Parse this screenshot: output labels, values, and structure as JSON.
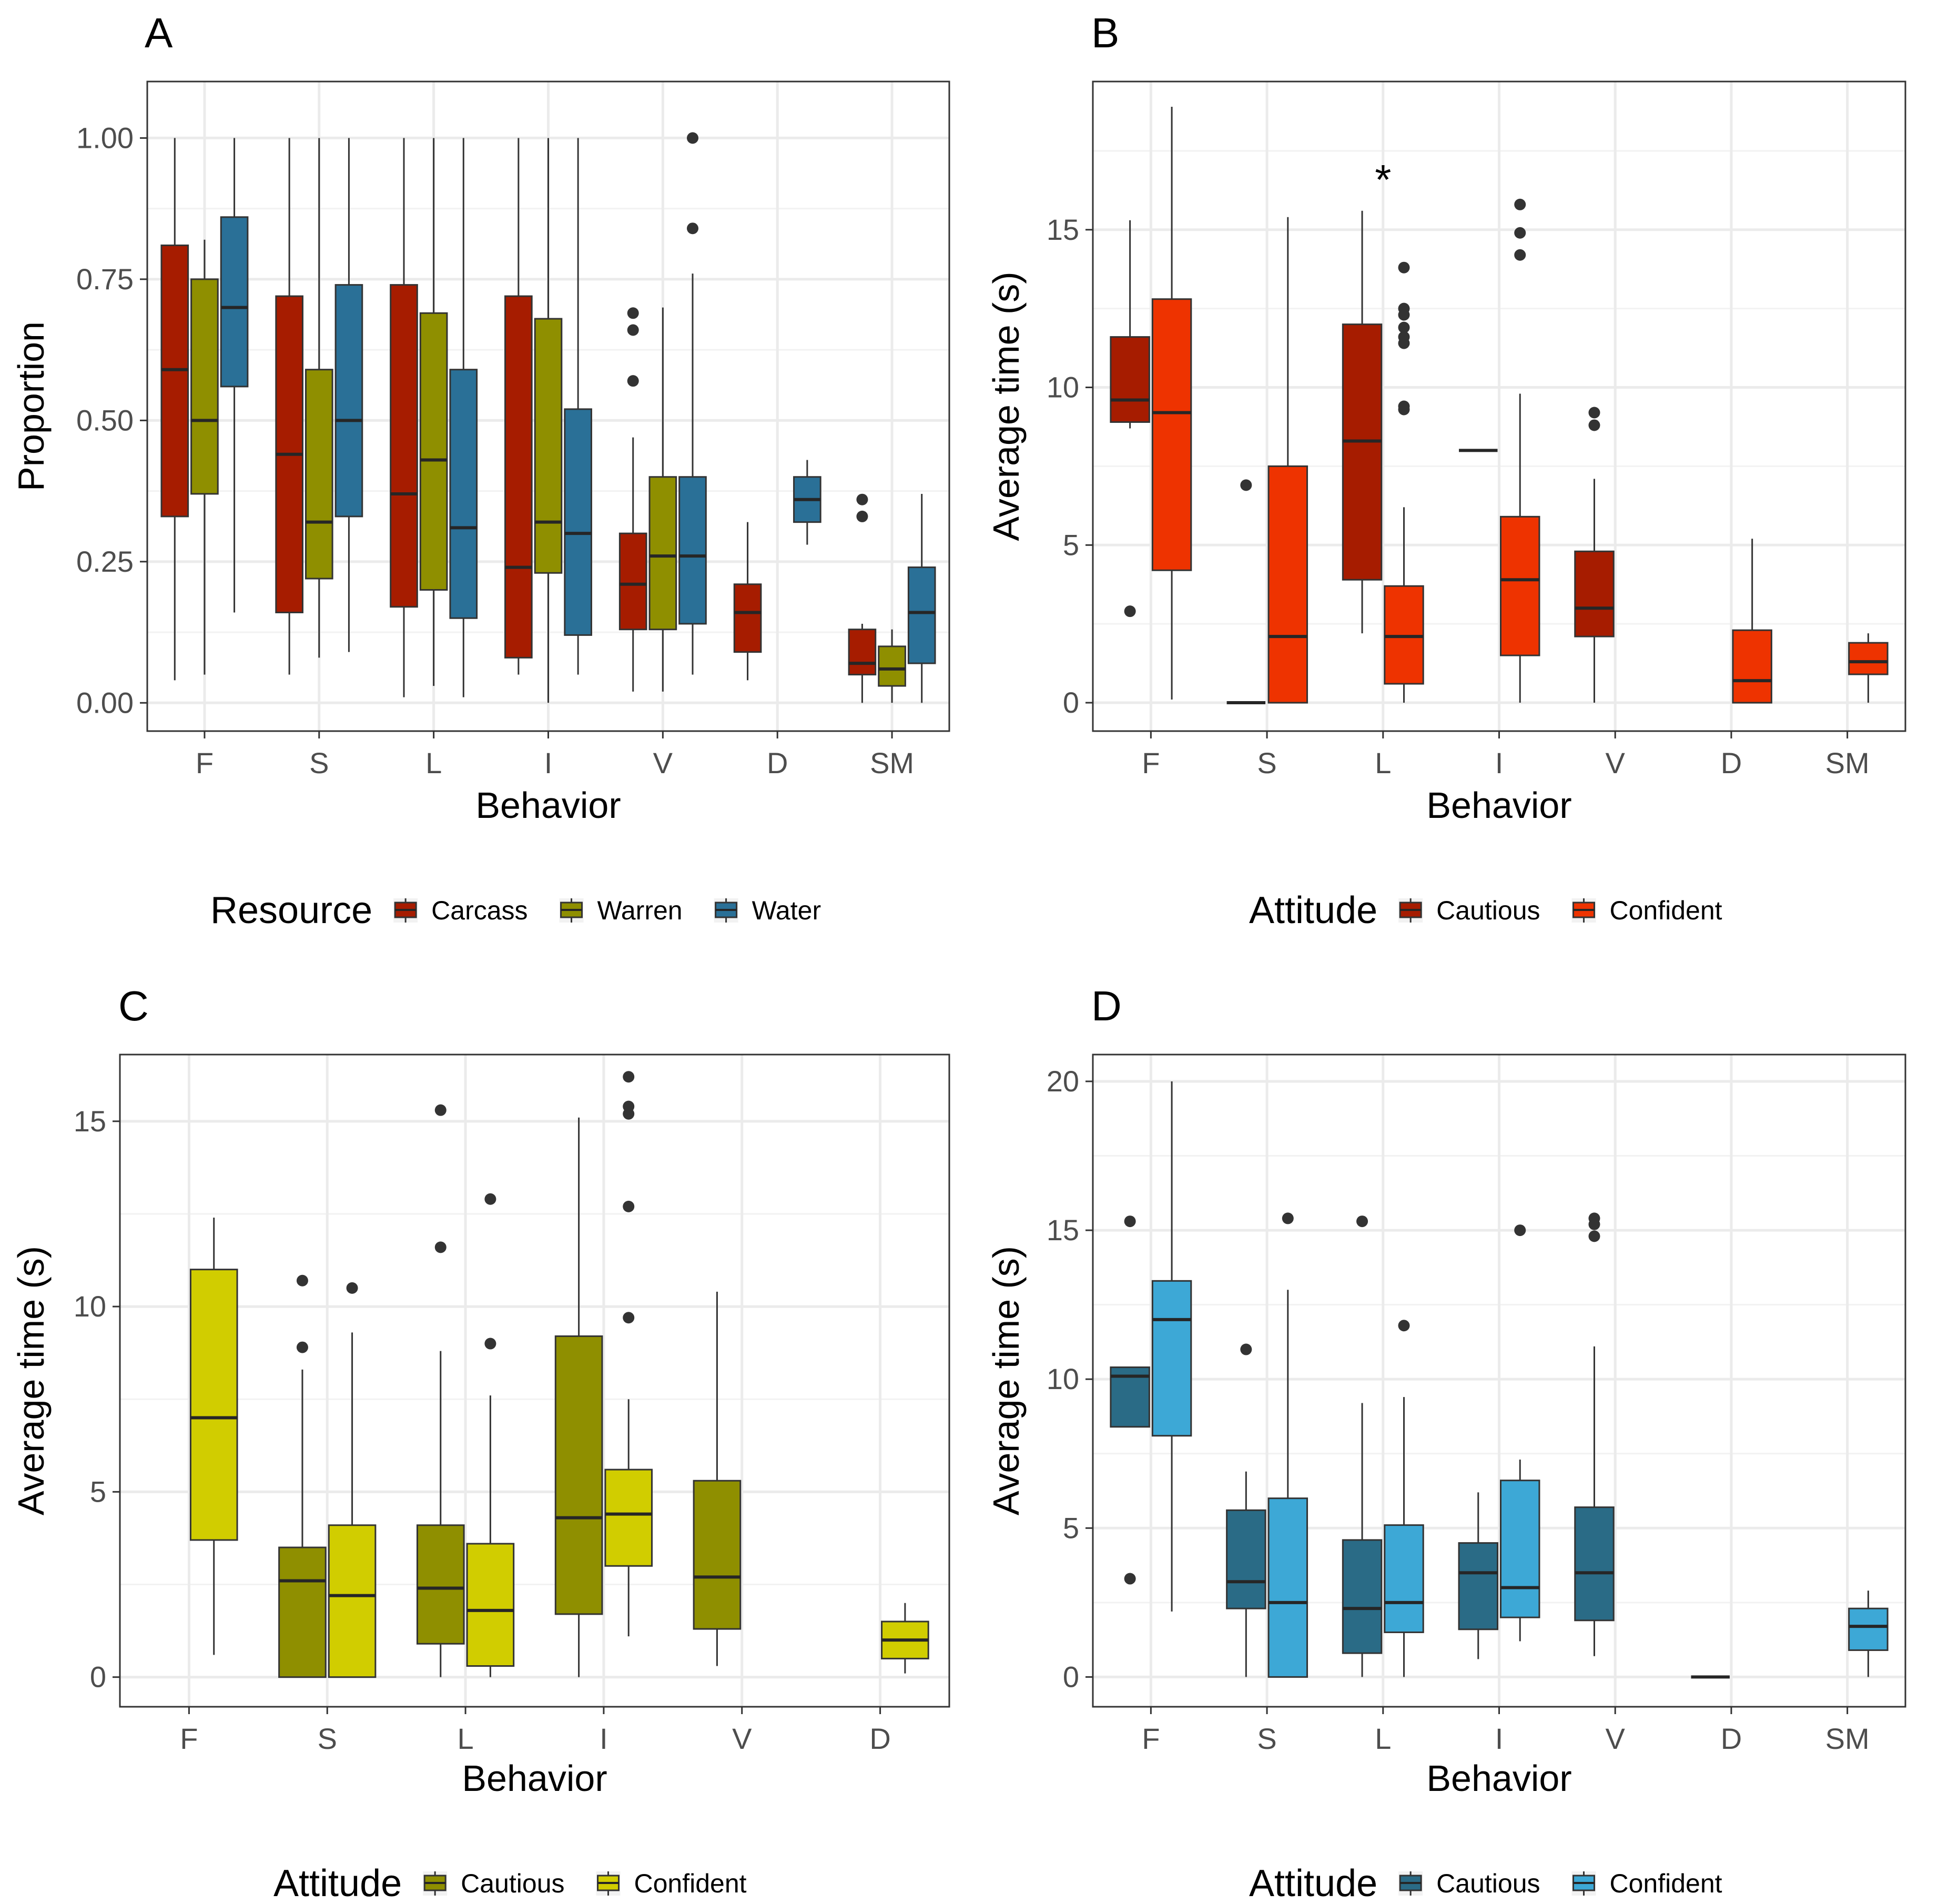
{
  "chart_data": [
    {
      "panel": "A",
      "type": "boxplot",
      "xlabel": "Behavior",
      "ylabel": "Proportion",
      "ylim": [
        -0.05,
        1.1
      ],
      "yticks": [
        0,
        0.25,
        0.5,
        0.75,
        1.0
      ],
      "ytick_labels": [
        "0.00",
        "0.25",
        "0.50",
        "0.75",
        "1.00"
      ],
      "categories": [
        "F",
        "S",
        "L",
        "I",
        "V",
        "D",
        "SM"
      ],
      "legend_title": "Resource",
      "series": [
        {
          "name": "Carcass",
          "color": "#A61C00",
          "boxes": [
            {
              "cat": "F",
              "min": 0.04,
              "q1": 0.33,
              "median": 0.59,
              "q3": 0.81,
              "max": 1.0,
              "outliers": []
            },
            {
              "cat": "S",
              "min": 0.05,
              "q1": 0.16,
              "median": 0.44,
              "q3": 0.72,
              "max": 1.0,
              "outliers": []
            },
            {
              "cat": "L",
              "min": 0.01,
              "q1": 0.17,
              "median": 0.37,
              "q3": 0.74,
              "max": 1.0,
              "outliers": []
            },
            {
              "cat": "I",
              "min": 0.05,
              "q1": 0.08,
              "median": 0.24,
              "q3": 0.72,
              "max": 1.0,
              "outliers": []
            },
            {
              "cat": "V",
              "min": 0.02,
              "q1": 0.13,
              "median": 0.21,
              "q3": 0.3,
              "max": 0.47,
              "outliers": [
                0.57,
                0.66,
                0.69
              ]
            },
            {
              "cat": "D",
              "min": 0.04,
              "q1": 0.09,
              "median": 0.16,
              "q3": 0.21,
              "max": 0.32,
              "outliers": []
            },
            {
              "cat": "SM",
              "min": 0.0,
              "q1": 0.05,
              "median": 0.07,
              "q3": 0.13,
              "max": 0.14,
              "outliers": [
                0.33,
                0.36
              ]
            }
          ]
        },
        {
          "name": "Warren",
          "color": "#8F8F00",
          "boxes": [
            {
              "cat": "F",
              "min": 0.05,
              "q1": 0.37,
              "median": 0.5,
              "q3": 0.75,
              "max": 0.82,
              "outliers": []
            },
            {
              "cat": "S",
              "min": 0.08,
              "q1": 0.22,
              "median": 0.32,
              "q3": 0.59,
              "max": 1.0,
              "outliers": []
            },
            {
              "cat": "L",
              "min": 0.03,
              "q1": 0.2,
              "median": 0.43,
              "q3": 0.69,
              "max": 1.0,
              "outliers": []
            },
            {
              "cat": "I",
              "min": 0.0,
              "q1": 0.23,
              "median": 0.32,
              "q3": 0.68,
              "max": 1.0,
              "outliers": []
            },
            {
              "cat": "V",
              "min": 0.02,
              "q1": 0.13,
              "median": 0.26,
              "q3": 0.4,
              "max": 0.7,
              "outliers": []
            },
            {
              "cat": "SM",
              "min": 0.0,
              "q1": 0.03,
              "median": 0.06,
              "q3": 0.1,
              "max": 0.13,
              "outliers": []
            }
          ]
        },
        {
          "name": "Water",
          "color": "#2A7097",
          "boxes": [
            {
              "cat": "F",
              "min": 0.16,
              "q1": 0.56,
              "median": 0.7,
              "q3": 0.86,
              "max": 1.0,
              "outliers": []
            },
            {
              "cat": "S",
              "min": 0.09,
              "q1": 0.33,
              "median": 0.5,
              "q3": 0.74,
              "max": 1.0,
              "outliers": []
            },
            {
              "cat": "L",
              "min": 0.01,
              "q1": 0.15,
              "median": 0.31,
              "q3": 0.59,
              "max": 1.0,
              "outliers": []
            },
            {
              "cat": "I",
              "min": 0.05,
              "q1": 0.12,
              "median": 0.3,
              "q3": 0.52,
              "max": 1.0,
              "outliers": []
            },
            {
              "cat": "V",
              "min": 0.05,
              "q1": 0.14,
              "median": 0.26,
              "q3": 0.4,
              "max": 0.76,
              "outliers": [
                0.84,
                1.0
              ]
            },
            {
              "cat": "D",
              "min": 0.28,
              "q1": 0.32,
              "median": 0.36,
              "q3": 0.4,
              "max": 0.43,
              "outliers": []
            },
            {
              "cat": "SM",
              "min": 0.0,
              "q1": 0.07,
              "median": 0.16,
              "q3": 0.24,
              "max": 0.37,
              "outliers": []
            }
          ]
        }
      ],
      "annotations": []
    },
    {
      "panel": "B",
      "type": "boxplot",
      "xlabel": "Behavior",
      "ylabel": "Average time (s)",
      "ylim": [
        -0.9,
        19.7
      ],
      "yticks": [
        0,
        5,
        10,
        15
      ],
      "ytick_labels": [
        "0",
        "5",
        "10",
        "15"
      ],
      "categories": [
        "F",
        "S",
        "L",
        "I",
        "V",
        "D",
        "SM"
      ],
      "legend_title": "Attitude",
      "series": [
        {
          "name": "Cautious",
          "color": "#A61C00",
          "boxes": [
            {
              "cat": "F",
              "min": 8.7,
              "q1": 8.9,
              "median": 9.6,
              "q3": 11.6,
              "max": 15.3,
              "outliers": [
                2.9
              ]
            },
            {
              "cat": "S",
              "min": 0.0,
              "q1": 0.0,
              "median": 0.0,
              "q3": 0.0,
              "max": 0.0,
              "outliers": [
                6.9
              ]
            },
            {
              "cat": "L",
              "min": 2.2,
              "q1": 3.9,
              "median": 8.3,
              "q3": 12.0,
              "max": 15.6,
              "outliers": []
            },
            {
              "cat": "I",
              "min": 8.0,
              "q1": 8.0,
              "median": 8.0,
              "q3": 8.0,
              "max": 8.0,
              "outliers": []
            },
            {
              "cat": "V",
              "min": 0.0,
              "q1": 2.1,
              "median": 3.0,
              "q3": 4.8,
              "max": 7.1,
              "outliers": [
                8.8,
                9.2
              ]
            }
          ]
        },
        {
          "name": "Confident",
          "color": "#EE3300",
          "boxes": [
            {
              "cat": "F",
              "min": 0.1,
              "q1": 4.2,
              "median": 9.2,
              "q3": 12.8,
              "max": 18.9,
              "outliers": []
            },
            {
              "cat": "S",
              "min": 0.0,
              "q1": 0.0,
              "median": 2.1,
              "q3": 7.5,
              "max": 15.4,
              "outliers": []
            },
            {
              "cat": "L",
              "min": 0.0,
              "q1": 0.6,
              "median": 2.1,
              "q3": 3.7,
              "max": 6.2,
              "outliers": [
                9.3,
                9.4,
                11.4,
                11.6,
                11.9,
                12.3,
                12.5,
                13.8
              ]
            },
            {
              "cat": "I",
              "min": 0.0,
              "q1": 1.5,
              "median": 3.9,
              "q3": 5.9,
              "max": 9.8,
              "outliers": [
                14.2,
                14.9,
                15.8
              ]
            },
            {
              "cat": "D",
              "min": 0.0,
              "q1": 0.0,
              "median": 0.7,
              "q3": 2.3,
              "max": 5.2,
              "outliers": []
            },
            {
              "cat": "SM",
              "min": 0.0,
              "q1": 0.9,
              "median": 1.3,
              "q3": 1.9,
              "max": 2.2,
              "outliers": []
            }
          ]
        }
      ],
      "annotations": [
        {
          "cat": "L",
          "y": 16.6,
          "text": "*"
        }
      ]
    },
    {
      "panel": "C",
      "type": "boxplot",
      "xlabel": "Behavior",
      "ylabel": "Average time (s)",
      "ylim": [
        -0.8,
        16.8
      ],
      "yticks": [
        0,
        5,
        10,
        15
      ],
      "ytick_labels": [
        "0",
        "5",
        "10",
        "15"
      ],
      "categories": [
        "F",
        "S",
        "L",
        "I",
        "V",
        "D"
      ],
      "legend_title": "Attitude",
      "series": [
        {
          "name": "Cautious",
          "color": "#8F8F00",
          "boxes": [
            {
              "cat": "S",
              "min": 0.0,
              "q1": 0.0,
              "median": 2.6,
              "q3": 3.5,
              "max": 8.3,
              "outliers": [
                8.9,
                10.7
              ]
            },
            {
              "cat": "L",
              "min": 0.0,
              "q1": 0.9,
              "median": 2.4,
              "q3": 4.1,
              "max": 8.8,
              "outliers": [
                11.6,
                15.3
              ]
            },
            {
              "cat": "I",
              "min": 0.0,
              "q1": 1.7,
              "median": 4.3,
              "q3": 9.2,
              "max": 15.1,
              "outliers": []
            },
            {
              "cat": "V",
              "min": 0.3,
              "q1": 1.3,
              "median": 2.7,
              "q3": 5.3,
              "max": 10.4,
              "outliers": []
            }
          ]
        },
        {
          "name": "Confident",
          "color": "#D1CD00",
          "boxes": [
            {
              "cat": "F",
              "min": 0.6,
              "q1": 3.7,
              "median": 7.0,
              "q3": 11.0,
              "max": 12.4,
              "outliers": []
            },
            {
              "cat": "S",
              "min": 0.0,
              "q1": 0.0,
              "median": 2.2,
              "q3": 4.1,
              "max": 9.3,
              "outliers": [
                10.5
              ]
            },
            {
              "cat": "L",
              "min": 0.0,
              "q1": 0.3,
              "median": 1.8,
              "q3": 3.6,
              "max": 7.6,
              "outliers": [
                9.0,
                12.9
              ]
            },
            {
              "cat": "I",
              "min": 1.1,
              "q1": 3.0,
              "median": 4.4,
              "q3": 5.6,
              "max": 7.5,
              "outliers": [
                9.7,
                12.7,
                15.2,
                15.4,
                16.2
              ]
            },
            {
              "cat": "D",
              "min": 0.1,
              "q1": 0.5,
              "median": 1.0,
              "q3": 1.5,
              "max": 2.0,
              "outliers": []
            }
          ]
        }
      ],
      "annotations": []
    },
    {
      "panel": "D",
      "type": "boxplot",
      "xlabel": "Behavior",
      "ylabel": "Average time (s)",
      "ylim": [
        -1.0,
        20.9
      ],
      "yticks": [
        0,
        5,
        10,
        15,
        20
      ],
      "ytick_labels": [
        "0",
        "5",
        "10",
        "15",
        "20"
      ],
      "categories": [
        "F",
        "S",
        "L",
        "I",
        "V",
        "D",
        "SM"
      ],
      "legend_title": "Attitude",
      "series": [
        {
          "name": "Cautious",
          "color": "#2A6B86",
          "boxes": [
            {
              "cat": "F",
              "min": 8.4,
              "q1": 8.4,
              "median": 10.1,
              "q3": 10.4,
              "max": 10.4,
              "outliers": [
                3.3,
                15.3
              ]
            },
            {
              "cat": "S",
              "min": 0.0,
              "q1": 2.3,
              "median": 3.2,
              "q3": 5.6,
              "max": 6.9,
              "outliers": [
                11.0
              ]
            },
            {
              "cat": "L",
              "min": 0.0,
              "q1": 0.8,
              "median": 2.3,
              "q3": 4.6,
              "max": 9.2,
              "outliers": [
                15.3
              ]
            },
            {
              "cat": "I",
              "min": 0.6,
              "q1": 1.6,
              "median": 3.5,
              "q3": 4.5,
              "max": 6.2,
              "outliers": []
            },
            {
              "cat": "V",
              "min": 0.7,
              "q1": 1.9,
              "median": 3.5,
              "q3": 5.7,
              "max": 11.1,
              "outliers": [
                14.8,
                15.2,
                15.4
              ]
            },
            {
              "cat": "D",
              "min": 0.0,
              "q1": 0.0,
              "median": 0.0,
              "q3": 0.0,
              "max": 0.0,
              "outliers": []
            }
          ]
        },
        {
          "name": "Confident",
          "color": "#3DA8D6",
          "boxes": [
            {
              "cat": "F",
              "min": 2.2,
              "q1": 8.1,
              "median": 12.0,
              "q3": 13.3,
              "max": 20.0,
              "outliers": []
            },
            {
              "cat": "S",
              "min": 0.0,
              "q1": 0.0,
              "median": 2.5,
              "q3": 6.0,
              "max": 13.0,
              "outliers": [
                15.4
              ]
            },
            {
              "cat": "L",
              "min": 0.0,
              "q1": 1.5,
              "median": 2.5,
              "q3": 5.1,
              "max": 9.4,
              "outliers": [
                11.8
              ]
            },
            {
              "cat": "I",
              "min": 1.2,
              "q1": 2.0,
              "median": 3.0,
              "q3": 6.6,
              "max": 7.3,
              "outliers": [
                15.0
              ]
            },
            {
              "cat": "SM",
              "min": 0.0,
              "q1": 0.9,
              "median": 1.7,
              "q3": 2.3,
              "max": 2.9,
              "outliers": []
            }
          ]
        }
      ],
      "annotations": []
    }
  ]
}
